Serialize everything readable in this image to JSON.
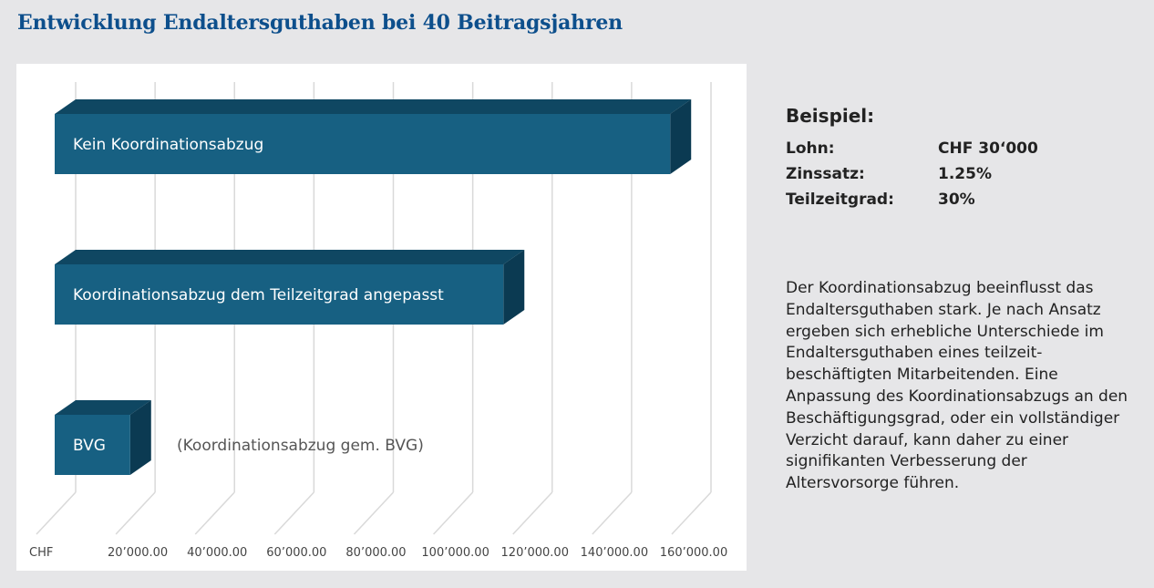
{
  "title": "Entwicklung Endaltersguthaben bei 40 Beitragsjahren",
  "colors": {
    "title": "#0d4f8c",
    "bar_front": "#176082",
    "bar_top": "#0f4762",
    "bar_side": "#0b3a52",
    "grid": "#d9d9d9"
  },
  "chart_data": {
    "type": "bar",
    "orientation": "horizontal",
    "style": "3d",
    "categories": [
      "Kein Koordinationsabzug",
      "Koordinationsabzug dem Teilzeitgrad angepasst",
      "BVG"
    ],
    "values": [
      155000,
      113000,
      19000
    ],
    "annotations": [
      "(Koordinationsabzug gem. BVG)"
    ],
    "x_ticks": [
      0,
      20000,
      40000,
      60000,
      80000,
      100000,
      120000,
      140000,
      160000
    ],
    "x_tick_labels": [
      "CHF",
      "20’000.00",
      "40’000.00",
      "60’000.00",
      "80’000.00",
      "100’000.00",
      "120’000.00",
      "140’000.00",
      "160’000.00"
    ],
    "xlim": [
      0,
      160000
    ],
    "grid": true,
    "legend": "none"
  },
  "info": {
    "heading": "Beispiel:",
    "rows": [
      {
        "label": "Lohn:",
        "value": "CHF 30‘000"
      },
      {
        "label": "Zinssatz:",
        "value": "1.25%"
      },
      {
        "label": "Teilzeitgrad:",
        "value": "30%"
      }
    ],
    "description": "Der Koordinationsabzug beeinflusst das Endaltersguthaben stark. Je nach Ansatz ergeben sich erhebliche Unterschiede im Endaltersguthaben eines teilzeit­beschäftigten Mitarbeitenden. Eine Anpassung des Koordinationsabzugs an den Beschäftigungsgrad, oder ein voll­ständiger Verzicht darauf, kann daher zu einer signifikanten Verbesserung der Altersvorsorge führen."
  }
}
